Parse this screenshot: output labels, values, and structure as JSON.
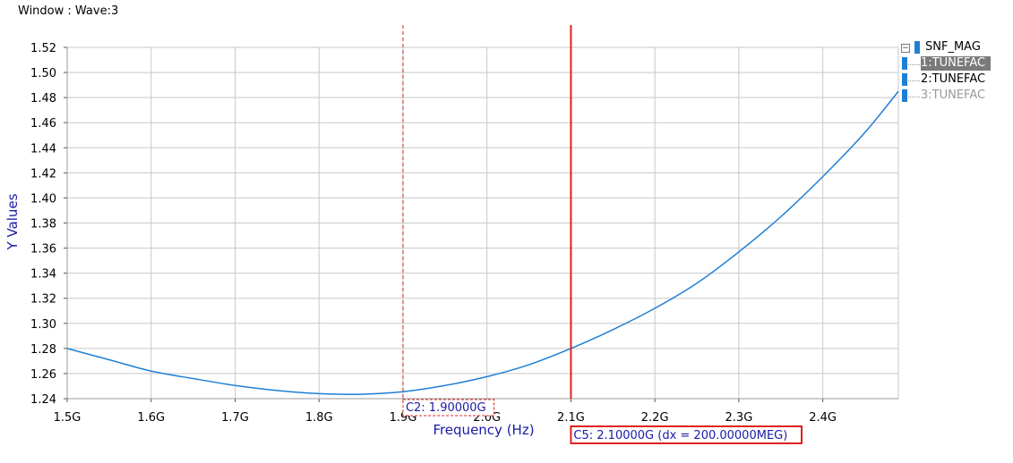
{
  "window": {
    "title": "Window : Wave:3"
  },
  "legend": {
    "title": "SNF_MAG",
    "items": [
      {
        "label": "1:TUNEFAC",
        "state": "selected"
      },
      {
        "label": "2:TUNEFAC",
        "state": "normal"
      },
      {
        "label": "3:TUNEFAC",
        "state": "dimmed"
      }
    ]
  },
  "markers": [
    {
      "id": "C2",
      "x": 1.9,
      "label": "C2: 1.90000G",
      "style": "dashed",
      "color": "#e02020"
    },
    {
      "id": "C5",
      "x": 2.1,
      "label": "C5: 2.10000G (dx = 200.00000MEG)",
      "style": "solid",
      "color": "#e02020"
    }
  ],
  "colors": {
    "curve": "#1e7fd6",
    "axis_text": "#1a1aa6",
    "grid": "#c8c8c8",
    "marker": "#e02020"
  },
  "chart_data": {
    "type": "line",
    "title": "",
    "xlabel": "Frequency (Hz)",
    "ylabel": "Y Values",
    "xlim": [
      1.5,
      2.49
    ],
    "ylim": [
      1.24,
      1.52
    ],
    "x_ticks": [
      1.5,
      1.6,
      1.7,
      1.8,
      1.9,
      2.0,
      2.1,
      2.2,
      2.3,
      2.4
    ],
    "x_tick_labels": [
      "1.5G",
      "1.6G",
      "1.7G",
      "1.8G",
      "1.9G",
      "2.0G",
      "2.1G",
      "2.2G",
      "2.3G",
      "2.4G"
    ],
    "y_ticks": [
      1.24,
      1.26,
      1.28,
      1.3,
      1.32,
      1.34,
      1.36,
      1.38,
      1.4,
      1.42,
      1.44,
      1.46,
      1.48,
      1.5,
      1.52
    ],
    "y_tick_labels": [
      "1.24",
      "1.26",
      "1.28",
      "1.30",
      "1.32",
      "1.34",
      "1.36",
      "1.38",
      "1.40",
      "1.42",
      "1.44",
      "1.46",
      "1.48",
      "1.50",
      "1.52"
    ],
    "grid": true,
    "series": [
      {
        "name": "1:TUNEFAC",
        "x": [
          1.5,
          1.55,
          1.6,
          1.65,
          1.7,
          1.75,
          1.8,
          1.85,
          1.9,
          1.95,
          2.0,
          2.05,
          2.1,
          2.15,
          2.2,
          2.25,
          2.3,
          2.35,
          2.4,
          2.45,
          2.49
        ],
        "y": [
          1.28,
          1.271,
          1.262,
          1.256,
          1.2505,
          1.2465,
          1.244,
          1.2435,
          1.2455,
          1.2505,
          1.2575,
          1.267,
          1.28,
          1.295,
          1.312,
          1.332,
          1.357,
          1.385,
          1.417,
          1.452,
          1.485
        ]
      }
    ]
  }
}
